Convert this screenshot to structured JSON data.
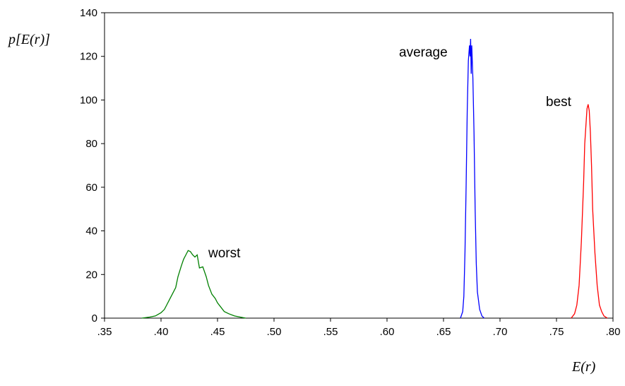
{
  "chart_data": {
    "type": "line",
    "xlabel": "E(r)",
    "ylabel": "p[E(r)]",
    "xlim": [
      0.35,
      0.8
    ],
    "ylim": [
      0,
      140
    ],
    "xticks": [
      {
        "value": 0.35,
        "label": ".35"
      },
      {
        "value": 0.4,
        "label": ".40"
      },
      {
        "value": 0.45,
        "label": ".45"
      },
      {
        "value": 0.5,
        "label": ".50"
      },
      {
        "value": 0.55,
        "label": ".55"
      },
      {
        "value": 0.6,
        "label": ".60"
      },
      {
        "value": 0.65,
        "label": ".65"
      },
      {
        "value": 0.7,
        "label": ".70"
      },
      {
        "value": 0.75,
        "label": ".75"
      },
      {
        "value": 0.8,
        "label": ".80"
      }
    ],
    "yticks": [
      0,
      20,
      40,
      60,
      80,
      100,
      120,
      140
    ],
    "series": [
      {
        "name": "worst",
        "color": "#008000",
        "x": [
          0.383,
          0.39,
          0.395,
          0.4,
          0.403,
          0.405,
          0.408,
          0.41,
          0.413,
          0.415,
          0.418,
          0.42,
          0.422,
          0.424,
          0.426,
          0.428,
          0.43,
          0.432,
          0.434,
          0.437,
          0.44,
          0.442,
          0.445,
          0.448,
          0.45,
          0.453,
          0.456,
          0.46,
          0.465,
          0.47,
          0.475
        ],
        "values": [
          0,
          0.5,
          1,
          2.5,
          4,
          6,
          9,
          11,
          14,
          19,
          24,
          27,
          29,
          31,
          30.5,
          29,
          28,
          29,
          23,
          23.5,
          19,
          15,
          11,
          9,
          7,
          5,
          3,
          2,
          1,
          0.5,
          0
        ]
      },
      {
        "name": "average",
        "color": "#0000ff",
        "x": [
          0.665,
          0.667,
          0.668,
          0.669,
          0.67,
          0.671,
          0.672,
          0.673,
          0.6735,
          0.674,
          0.6745,
          0.675,
          0.676,
          0.677,
          0.678,
          0.679,
          0.68,
          0.682,
          0.684,
          0.686
        ],
        "values": [
          0,
          3,
          10,
          30,
          60,
          95,
          118,
          125,
          120,
          128,
          112,
          125,
          110,
          85,
          50,
          25,
          12,
          4,
          1,
          0
        ]
      },
      {
        "name": "best",
        "color": "#ff0000",
        "x": [
          0.763,
          0.766,
          0.768,
          0.77,
          0.772,
          0.774,
          0.775,
          0.776,
          0.777,
          0.778,
          0.779,
          0.78,
          0.781,
          0.782,
          0.784,
          0.786,
          0.788,
          0.79,
          0.792,
          0.795
        ],
        "values": [
          0,
          2,
          6,
          15,
          35,
          62,
          80,
          88,
          96,
          98,
          95,
          85,
          70,
          50,
          30,
          15,
          6,
          3,
          1,
          0
        ]
      }
    ]
  }
}
